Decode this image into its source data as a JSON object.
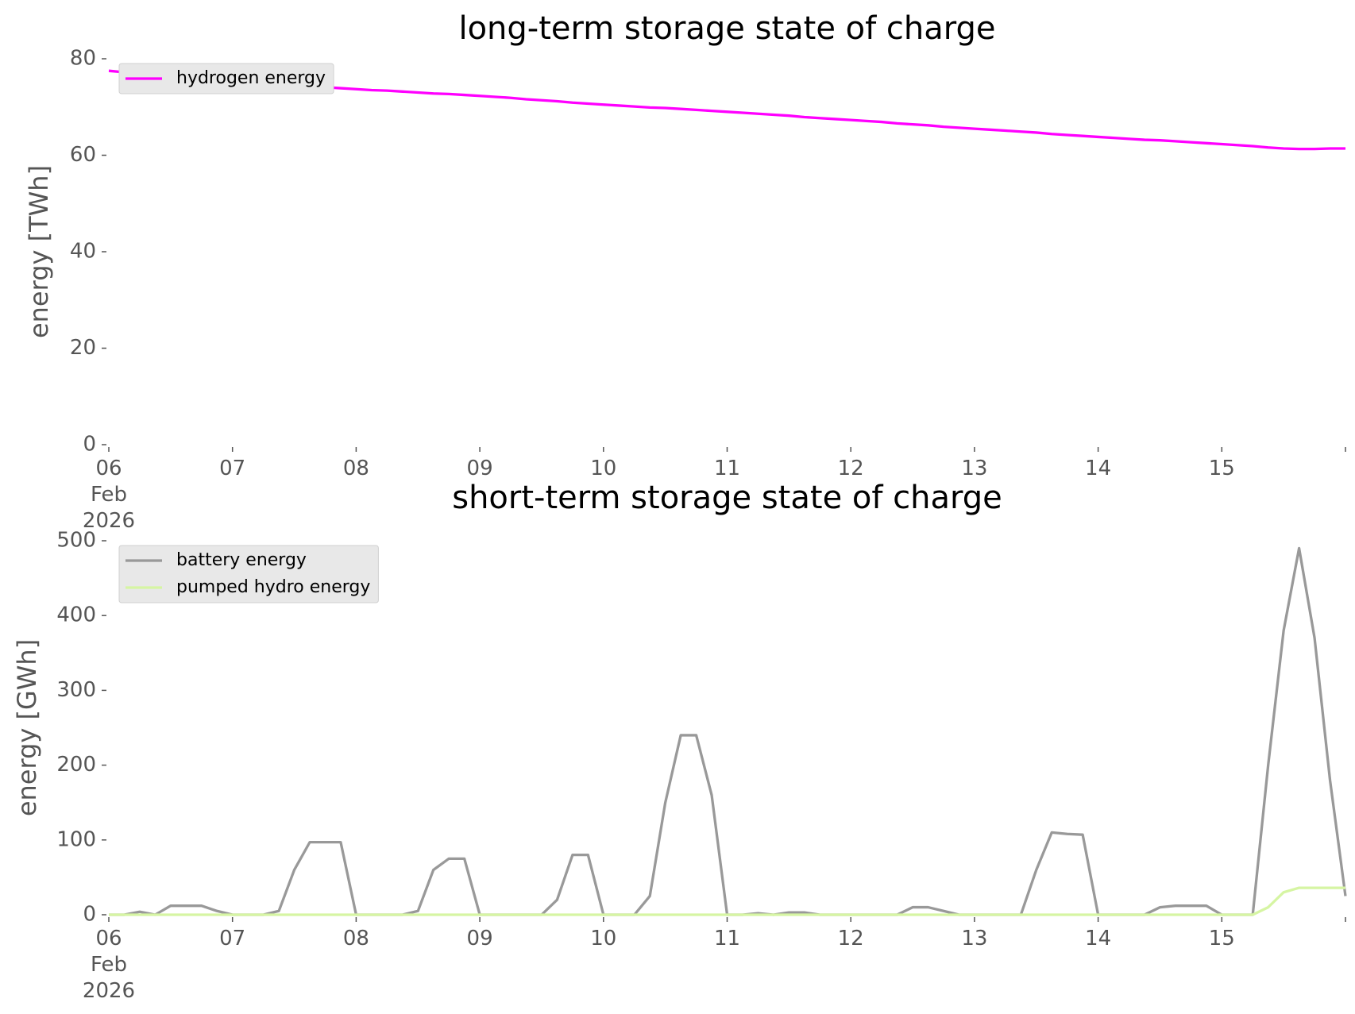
{
  "chart_data": [
    {
      "type": "line",
      "title": "long-term storage state of charge",
      "ylabel": "energy [TWh]",
      "legend": "upper left",
      "x": [
        0,
        0.125,
        0.25,
        0.375,
        0.5,
        0.625,
        0.75,
        0.875,
        1,
        1.125,
        1.25,
        1.375,
        1.5,
        1.625,
        1.75,
        1.875,
        2,
        2.125,
        2.25,
        2.375,
        2.5,
        2.625,
        2.75,
        2.875,
        3,
        3.125,
        3.25,
        3.375,
        3.5,
        3.625,
        3.75,
        3.875,
        4,
        4.125,
        4.25,
        4.375,
        4.5,
        4.625,
        4.75,
        4.875,
        5,
        5.125,
        5.25,
        5.375,
        5.5,
        5.625,
        5.75,
        5.875,
        6,
        6.125,
        6.25,
        6.375,
        6.5,
        6.625,
        6.75,
        6.875,
        7,
        7.125,
        7.25,
        7.375,
        7.5,
        7.625,
        7.75,
        7.875,
        8,
        8.125,
        8.25,
        8.375,
        8.5,
        8.625,
        8.75,
        8.875,
        9,
        9.125,
        9.25,
        9.375,
        9.5,
        9.625,
        9.75,
        9.875,
        10
      ],
      "series": [
        {
          "name": "hydrogen energy",
          "color": "#ff00ff",
          "values": [
            77.5,
            77.2,
            77.0,
            76.7,
            76.4,
            76.1,
            75.9,
            75.6,
            75.3,
            75.1,
            74.9,
            74.7,
            74.5,
            74.3,
            74.1,
            73.9,
            73.7,
            73.5,
            73.4,
            73.2,
            73.0,
            72.8,
            72.7,
            72.5,
            72.3,
            72.1,
            71.9,
            71.6,
            71.4,
            71.2,
            70.9,
            70.7,
            70.5,
            70.3,
            70.1,
            69.9,
            69.8,
            69.6,
            69.4,
            69.2,
            69.0,
            68.8,
            68.6,
            68.4,
            68.2,
            67.9,
            67.7,
            67.5,
            67.3,
            67.1,
            66.9,
            66.6,
            66.4,
            66.2,
            65.9,
            65.7,
            65.5,
            65.3,
            65.1,
            64.9,
            64.7,
            64.4,
            64.2,
            64.0,
            63.8,
            63.6,
            63.4,
            63.2,
            63.1,
            62.9,
            62.7,
            62.5,
            62.3,
            62.1,
            61.9,
            61.6,
            61.4,
            61.3,
            61.3,
            61.4,
            61.4
          ]
        }
      ],
      "xlim": [
        0,
        10
      ],
      "ylim": [
        0,
        80
      ],
      "xticks": [
        {
          "value": 0,
          "label": "06\nFeb\n2026"
        },
        {
          "value": 1,
          "label": "07"
        },
        {
          "value": 2,
          "label": "08"
        },
        {
          "value": 3,
          "label": "09"
        },
        {
          "value": 4,
          "label": "10"
        },
        {
          "value": 5,
          "label": "11"
        },
        {
          "value": 6,
          "label": "12"
        },
        {
          "value": 7,
          "label": "13"
        },
        {
          "value": 8,
          "label": "14"
        },
        {
          "value": 9,
          "label": "15"
        }
      ],
      "yticks": [
        0,
        20,
        40,
        60,
        80
      ]
    },
    {
      "type": "line",
      "title": "short-term storage state of charge",
      "ylabel": "energy [GWh]",
      "legend": "upper left",
      "x": [
        0,
        0.125,
        0.25,
        0.375,
        0.5,
        0.625,
        0.75,
        0.875,
        1,
        1.125,
        1.25,
        1.375,
        1.5,
        1.625,
        1.75,
        1.875,
        2,
        2.125,
        2.25,
        2.375,
        2.5,
        2.625,
        2.75,
        2.875,
        3,
        3.125,
        3.25,
        3.375,
        3.5,
        3.625,
        3.75,
        3.875,
        4,
        4.125,
        4.25,
        4.375,
        4.5,
        4.625,
        4.75,
        4.875,
        5,
        5.125,
        5.25,
        5.375,
        5.5,
        5.625,
        5.75,
        5.875,
        6,
        6.125,
        6.25,
        6.375,
        6.5,
        6.625,
        6.75,
        6.875,
        7,
        7.125,
        7.25,
        7.375,
        7.5,
        7.625,
        7.75,
        7.875,
        8,
        8.125,
        8.25,
        8.375,
        8.5,
        8.625,
        8.75,
        8.875,
        9,
        9.125,
        9.25,
        9.375,
        9.5,
        9.625,
        9.75,
        9.875,
        10
      ],
      "series": [
        {
          "name": "battery energy",
          "color": "#999999",
          "values": [
            0,
            0,
            4,
            0,
            12,
            12,
            12,
            5,
            0,
            0,
            0,
            5,
            60,
            97,
            97,
            97,
            0,
            0,
            0,
            0,
            5,
            60,
            75,
            75,
            0,
            0,
            0,
            0,
            0,
            20,
            80,
            80,
            0,
            0,
            0,
            25,
            150,
            240,
            240,
            160,
            0,
            0,
            2,
            0,
            3,
            3,
            0,
            0,
            0,
            0,
            0,
            0,
            10,
            10,
            5,
            0,
            0,
            0,
            0,
            0,
            60,
            110,
            108,
            107,
            0,
            0,
            0,
            0,
            10,
            12,
            12,
            12,
            0,
            0,
            0,
            200,
            380,
            490,
            370,
            180,
            25
          ]
        },
        {
          "name": "pumped hydro energy",
          "color": "#d6f5a3",
          "values": [
            0,
            0,
            0,
            0,
            0,
            0,
            0,
            0,
            0,
            0,
            0,
            0,
            0,
            0,
            0,
            0,
            0,
            0,
            0,
            0,
            0,
            0,
            0,
            0,
            0,
            0,
            0,
            0,
            0,
            0,
            0,
            0,
            0,
            0,
            0,
            0,
            0,
            0,
            0,
            0,
            0,
            0,
            0,
            0,
            0,
            0,
            0,
            0,
            0,
            0,
            0,
            0,
            0,
            0,
            0,
            0,
            0,
            0,
            0,
            0,
            0,
            0,
            0,
            0,
            0,
            0,
            0,
            0,
            0,
            0,
            0,
            0,
            0,
            0,
            0,
            10,
            30,
            36,
            36,
            36,
            36
          ]
        }
      ],
      "xlim": [
        0,
        10
      ],
      "ylim": [
        0,
        500
      ],
      "xticks": [
        {
          "value": 0,
          "label": "06\nFeb\n2026"
        },
        {
          "value": 1,
          "label": "07"
        },
        {
          "value": 2,
          "label": "08"
        },
        {
          "value": 3,
          "label": "09"
        },
        {
          "value": 4,
          "label": "10"
        },
        {
          "value": 5,
          "label": "11"
        },
        {
          "value": 6,
          "label": "12"
        },
        {
          "value": 7,
          "label": "13"
        },
        {
          "value": 8,
          "label": "14"
        },
        {
          "value": 9,
          "label": "15"
        }
      ],
      "yticks": [
        0,
        100,
        200,
        300,
        400,
        500
      ]
    }
  ]
}
